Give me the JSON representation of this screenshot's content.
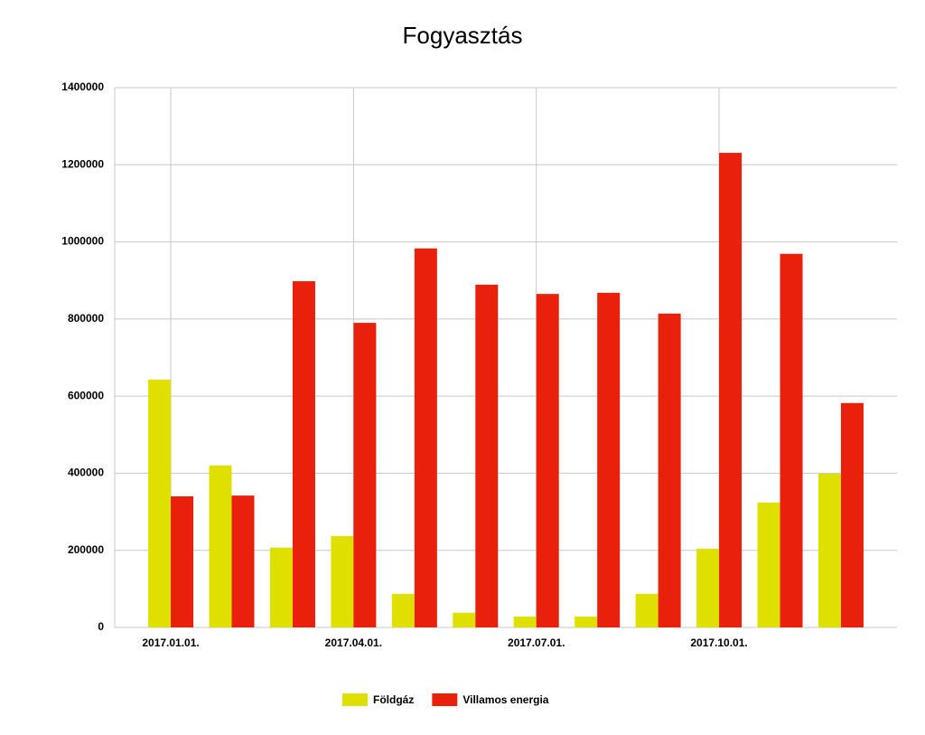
{
  "chart_data": {
    "type": "bar",
    "title": "Fogyasztás",
    "categories": [
      "2017.01.01.",
      null,
      null,
      "2017.04.01.",
      null,
      null,
      "2017.07.01.",
      null,
      null,
      "2017.10.01.",
      null,
      null
    ],
    "series": [
      {
        "name": "Földgáz",
        "color": "#e0e000",
        "values": [
          643000,
          420000,
          207000,
          237000,
          87000,
          38000,
          28000,
          28000,
          87000,
          204000,
          324000,
          399000
        ]
      },
      {
        "name": "Villamos energia",
        "color": "#e8200c",
        "values": [
          340000,
          342000,
          898000,
          790000,
          983000,
          889000,
          865000,
          868000,
          814000,
          1231000,
          969000,
          582000
        ]
      }
    ],
    "ylim": [
      0,
      1400000
    ],
    "yticks": [
      0,
      200000,
      400000,
      600000,
      800000,
      1000000,
      1200000,
      1400000
    ],
    "grid": true,
    "legend": "bottom"
  }
}
